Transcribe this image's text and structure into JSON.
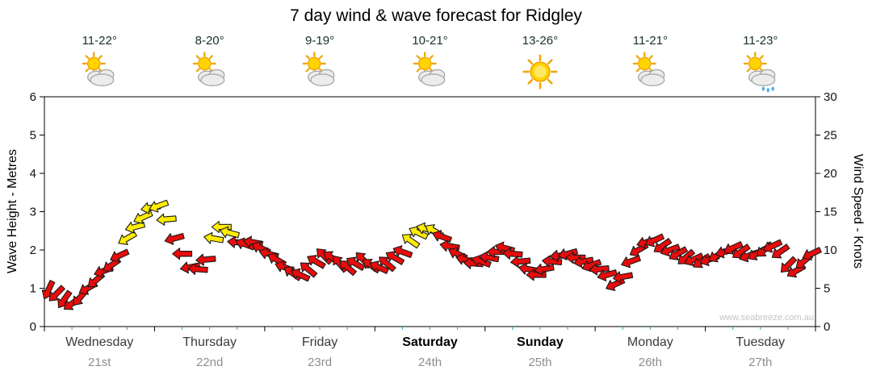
{
  "page": {
    "watermark": "www.seabreeze.com.au"
  },
  "chart_data": {
    "type": "line",
    "title": "7 day wind & wave forecast for Ridgley",
    "left_axis": {
      "label": "Wave Height - Metres",
      "min": 0,
      "max": 6,
      "tick": 1
    },
    "right_axis": {
      "label": "Wind Speed - Knots",
      "min": 0,
      "max": 30,
      "tick": 5
    },
    "grid": false,
    "days": [
      {
        "name": "Wednesday",
        "date": "21st",
        "temp": "11-22°",
        "icon": "partly-cloudy",
        "bold": false
      },
      {
        "name": "Thursday",
        "date": "22nd",
        "temp": "8-20°",
        "icon": "partly-cloudy",
        "bold": false
      },
      {
        "name": "Friday",
        "date": "23rd",
        "temp": "9-19°",
        "icon": "partly-cloudy",
        "bold": false
      },
      {
        "name": "Saturday",
        "date": "24th",
        "temp": "10-21°",
        "icon": "partly-cloudy",
        "bold": true
      },
      {
        "name": "Sunday",
        "date": "25th",
        "temp": "13-26°",
        "icon": "sun",
        "bold": true
      },
      {
        "name": "Monday",
        "date": "26th",
        "temp": "11-21°",
        "icon": "partly-cloudy",
        "bold": false
      },
      {
        "name": "Tuesday",
        "date": "27th",
        "temp": "11-23°",
        "icon": "partly-cloudy-rain",
        "bold": false
      }
    ],
    "colors": {
      "red": "#e80c0c",
      "yellow": "#ffec00",
      "outline": "#1a1a1a"
    },
    "point_schema": [
      "wave_height_metres",
      "color (r=red, y=yellow)",
      "arrow_direction_deg"
    ],
    "points_per_day": 14,
    "points": [
      [
        0.95,
        "r",
        205
      ],
      [
        0.85,
        "r",
        225
      ],
      [
        0.7,
        "r",
        215
      ],
      [
        0.6,
        "r",
        235
      ],
      [
        0.75,
        "r",
        220
      ],
      [
        1.0,
        "r",
        240
      ],
      [
        1.2,
        "r",
        230
      ],
      [
        1.45,
        "r",
        250
      ],
      [
        1.6,
        "r",
        235
      ],
      [
        1.85,
        "r",
        245
      ],
      [
        2.3,
        "y",
        240
      ],
      [
        2.6,
        "y",
        255
      ],
      [
        2.85,
        "y",
        245
      ],
      [
        3.1,
        "y",
        260
      ],
      [
        3.15,
        "y",
        250
      ],
      [
        2.8,
        "y",
        265
      ],
      [
        2.3,
        "r",
        255
      ],
      [
        1.9,
        "r",
        270
      ],
      [
        1.55,
        "r",
        260
      ],
      [
        1.5,
        "r",
        275
      ],
      [
        1.75,
        "r",
        265
      ],
      [
        2.3,
        "y",
        280
      ],
      [
        2.6,
        "y",
        270
      ],
      [
        2.45,
        "y",
        285
      ],
      [
        2.2,
        "r",
        275
      ],
      [
        2.15,
        "r",
        290
      ],
      [
        2.2,
        "r",
        280
      ],
      [
        2.05,
        "r",
        295
      ],
      [
        1.9,
        "r",
        285
      ],
      [
        1.75,
        "r",
        300
      ],
      [
        1.55,
        "r",
        290
      ],
      [
        1.4,
        "r",
        305
      ],
      [
        1.35,
        "r",
        295
      ],
      [
        1.5,
        "r",
        310
      ],
      [
        1.7,
        "r",
        300
      ],
      [
        1.85,
        "r",
        315
      ],
      [
        1.8,
        "r",
        305
      ],
      [
        1.65,
        "r",
        320
      ],
      [
        1.55,
        "r",
        310
      ],
      [
        1.65,
        "r",
        300
      ],
      [
        1.75,
        "r",
        315
      ],
      [
        1.6,
        "r",
        305
      ],
      [
        1.55,
        "r",
        295
      ],
      [
        1.65,
        "r",
        310
      ],
      [
        1.8,
        "r",
        300
      ],
      [
        1.95,
        "r",
        290
      ],
      [
        2.25,
        "y",
        305
      ],
      [
        2.45,
        "y",
        295
      ],
      [
        2.55,
        "y",
        285
      ],
      [
        2.5,
        "y",
        300
      ],
      [
        2.35,
        "r",
        290
      ],
      [
        2.1,
        "r",
        280
      ],
      [
        1.9,
        "r",
        295
      ],
      [
        1.75,
        "r",
        285
      ],
      [
        1.65,
        "r",
        275
      ],
      [
        1.7,
        "r",
        290
      ],
      [
        1.8,
        "r",
        280
      ],
      [
        1.95,
        "r",
        270
      ],
      [
        2.05,
        "r",
        285
      ],
      [
        1.9,
        "r",
        275
      ],
      [
        1.7,
        "r",
        265
      ],
      [
        1.5,
        "r",
        280
      ],
      [
        1.35,
        "r",
        270
      ],
      [
        1.5,
        "r",
        260
      ],
      [
        1.7,
        "r",
        275
      ],
      [
        1.85,
        "r",
        265
      ],
      [
        1.9,
        "r",
        255
      ],
      [
        1.8,
        "r",
        270
      ],
      [
        1.7,
        "r",
        260
      ],
      [
        1.6,
        "r",
        250
      ],
      [
        1.5,
        "r",
        265
      ],
      [
        1.35,
        "r",
        255
      ],
      [
        1.1,
        "r",
        245
      ],
      [
        1.3,
        "r",
        260
      ],
      [
        1.7,
        "r",
        250
      ],
      [
        2.0,
        "r",
        240
      ],
      [
        2.2,
        "r",
        255
      ],
      [
        2.25,
        "r",
        245
      ],
      [
        2.1,
        "r",
        235
      ],
      [
        2.0,
        "r",
        250
      ],
      [
        1.9,
        "r",
        240
      ],
      [
        1.8,
        "r",
        230
      ],
      [
        1.75,
        "r",
        245
      ],
      [
        1.7,
        "r",
        235
      ],
      [
        1.75,
        "r",
        250
      ],
      [
        1.85,
        "r",
        240
      ],
      [
        1.95,
        "r",
        255
      ],
      [
        2.05,
        "r",
        245
      ],
      [
        1.95,
        "r",
        235
      ],
      [
        1.85,
        "r",
        250
      ],
      [
        1.9,
        "r",
        240
      ],
      [
        2.0,
        "r",
        230
      ],
      [
        2.1,
        "r",
        245
      ],
      [
        1.95,
        "r",
        235
      ],
      [
        1.6,
        "r",
        225
      ],
      [
        1.45,
        "r",
        240
      ],
      [
        1.7,
        "r",
        230
      ],
      [
        1.9,
        "r",
        245
      ]
    ]
  }
}
